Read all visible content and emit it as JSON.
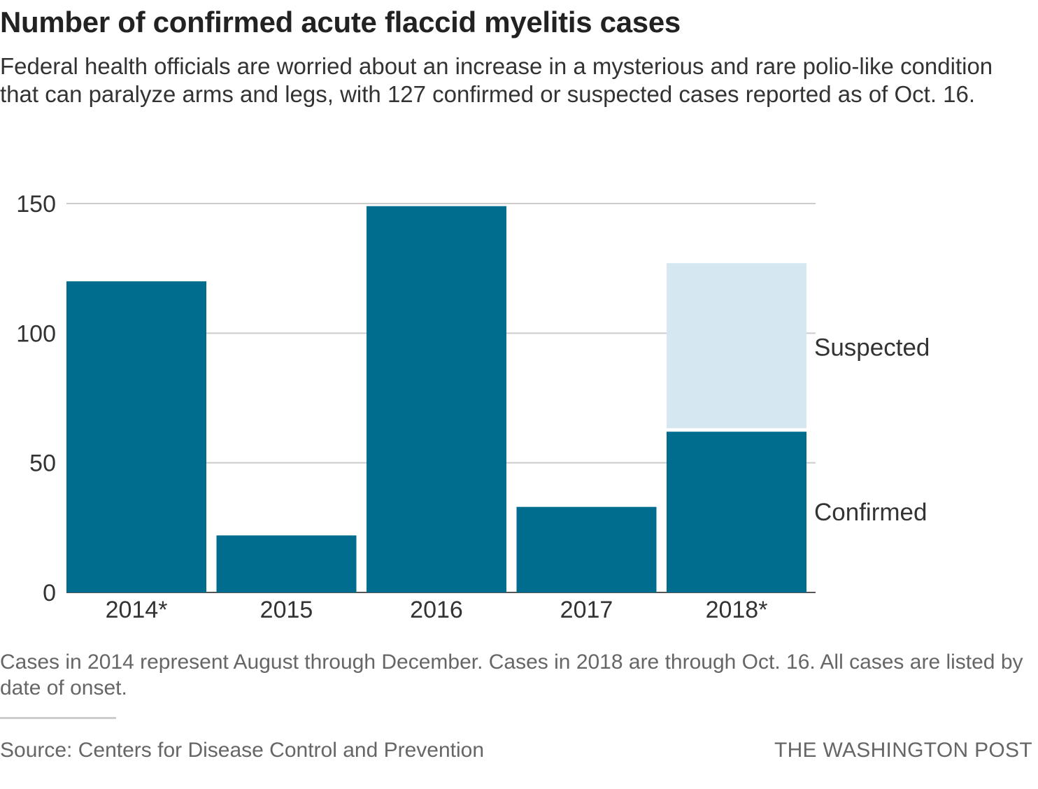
{
  "header": {
    "title": "Number of confirmed acute flaccid myelitis cases",
    "subtitle": "Federal health officials are worried about an increase in a mysterious and rare polio-like condition that can paralyze arms and legs, with 127 confirmed or suspected cases reported as of Oct. 16."
  },
  "chart_data": {
    "type": "bar",
    "stacked": true,
    "categories": [
      "2014*",
      "2015",
      "2016",
      "2017",
      "2018*"
    ],
    "series": [
      {
        "name": "Confirmed",
        "color": "#006d8f",
        "values": [
          120,
          22,
          149,
          33,
          62
        ]
      },
      {
        "name": "Suspected",
        "color": "#d5e7f1",
        "values": [
          0,
          0,
          0,
          0,
          65
        ]
      }
    ],
    "yticks": [
      0,
      50,
      100,
      150
    ],
    "ylim": [
      0,
      150
    ],
    "grid": true,
    "legend": "direct labels at right of last bar",
    "title": "",
    "xlabel": "",
    "ylabel": ""
  },
  "footer": {
    "note": "Cases in 2014 represent August through December. Cases in 2018 are through Oct. 16. All cases are listed by date of onset.",
    "source": "Source: Centers for Disease Control and Prevention",
    "credit": "THE WASHINGTON POST"
  }
}
